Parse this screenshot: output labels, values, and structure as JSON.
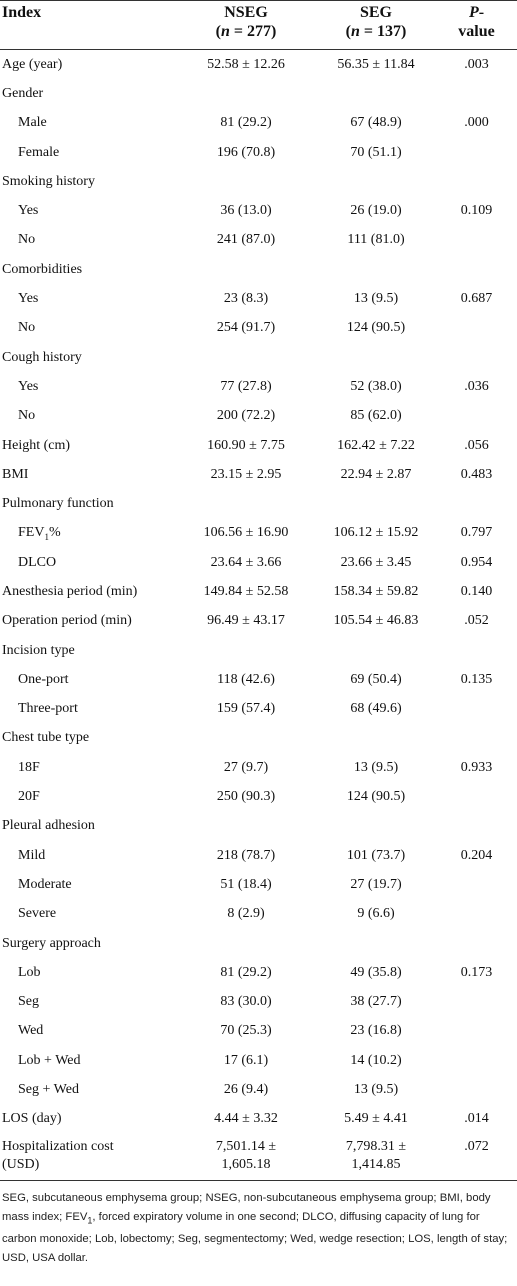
{
  "table": {
    "header": {
      "index": "Index",
      "nseg": {
        "name": "NSEG",
        "open": "(",
        "var": "n",
        "rest": " = 277)"
      },
      "seg": {
        "name": "SEG",
        "open": "(",
        "var": "n",
        "rest": " = 137)"
      },
      "p": {
        "var": "P",
        "rest": "-",
        "line2": "value"
      }
    },
    "rows": [
      {
        "label": "Age (year)",
        "nseg": "52.58 ± 12.26",
        "seg": "56.35 ± 11.84",
        "p": ".003"
      },
      {
        "label": "Gender",
        "items": [
          {
            "label": "Male",
            "nseg": "81 (29.2)",
            "seg": "67 (48.9)",
            "p": ".000"
          },
          {
            "label": "Female",
            "nseg": "196 (70.8)",
            "seg": "70 (51.1)"
          }
        ]
      },
      {
        "label": "Smoking history",
        "items": [
          {
            "label": "Yes",
            "nseg": "36 (13.0)",
            "seg": "26 (19.0)",
            "p": "0.109"
          },
          {
            "label": "No",
            "nseg": "241 (87.0)",
            "seg": "111 (81.0)"
          }
        ]
      },
      {
        "label": "Comorbidities",
        "items": [
          {
            "label": "Yes",
            "nseg": "23 (8.3)",
            "seg": "13 (9.5)",
            "p": "0.687"
          },
          {
            "label": "No",
            "nseg": "254 (91.7)",
            "seg": "124 (90.5)"
          }
        ]
      },
      {
        "label": "Cough history",
        "items": [
          {
            "label": "Yes",
            "nseg": "77 (27.8)",
            "seg": "52 (38.0)",
            "p": ".036"
          },
          {
            "label": "No",
            "nseg": "200 (72.2)",
            "seg": "85 (62.0)"
          }
        ]
      },
      {
        "label": "Height (cm)",
        "nseg": "160.90 ± 7.75",
        "seg": "162.42 ± 7.22",
        "p": ".056"
      },
      {
        "label": "BMI",
        "nseg": "23.15 ± 2.95",
        "seg": "22.94 ± 2.87",
        "p": "0.483"
      },
      {
        "label": "Pulmonary function",
        "items": [
          {
            "label": {
              "text": "FEV",
              "sub": "1",
              "post": "%"
            },
            "nseg": "106.56 ± 16.90",
            "seg": "106.12 ± 15.92",
            "p": "0.797"
          },
          {
            "label": "DLCO",
            "nseg": "23.64 ± 3.66",
            "seg": "23.66 ± 3.45",
            "p": "0.954"
          }
        ]
      },
      {
        "label": "Anesthesia period (min)",
        "nseg": "149.84 ± 52.58",
        "seg": "158.34 ± 59.82",
        "p": "0.140"
      },
      {
        "label": "Operation period (min)",
        "nseg": "96.49 ± 43.17",
        "seg": "105.54 ± 46.83",
        "p": ".052"
      },
      {
        "label": "Incision type",
        "items": [
          {
            "label": "One-port",
            "nseg": "118 (42.6)",
            "seg": "69 (50.4)",
            "p": "0.135"
          },
          {
            "label": "Three-port",
            "nseg": "159 (57.4)",
            "seg": "68 (49.6)"
          }
        ]
      },
      {
        "label": "Chest tube type",
        "items": [
          {
            "label": "18F",
            "nseg": "27 (9.7)",
            "seg": "13 (9.5)",
            "p": "0.933"
          },
          {
            "label": "20F",
            "nseg": "250 (90.3)",
            "seg": "124 (90.5)"
          }
        ]
      },
      {
        "label": "Pleural adhesion",
        "items": [
          {
            "label": "Mild",
            "nseg": "218 (78.7)",
            "seg": "101 (73.7)",
            "p": "0.204"
          },
          {
            "label": "Moderate",
            "nseg": "51 (18.4)",
            "seg": "27 (19.7)"
          },
          {
            "label": "Severe",
            "nseg": "8 (2.9)",
            "seg": "9 (6.6)"
          }
        ]
      },
      {
        "label": "Surgery approach",
        "items": [
          {
            "label": "Lob",
            "nseg": "81 (29.2)",
            "seg": "49 (35.8)",
            "p": "0.173"
          },
          {
            "label": "Seg",
            "nseg": "83 (30.0)",
            "seg": "38 (27.7)"
          },
          {
            "label": "Wed",
            "nseg": "70 (25.3)",
            "seg": "23 (16.8)"
          },
          {
            "label": "Lob + Wed",
            "nseg": "17 (6.1)",
            "seg": "14 (10.2)"
          },
          {
            "label": "Seg + Wed",
            "nseg": "26 (9.4)",
            "seg": "13 (9.5)"
          }
        ]
      },
      {
        "label": "LOS (day)",
        "nseg": "4.44 ± 3.32",
        "seg": "5.49 ± 4.41",
        "p": ".014"
      },
      {
        "label": "Hospitalization cost (USD)",
        "nseg": "7,501.14 ± 1,605.18",
        "seg": "7,798.31 ± 1,414.85",
        "p": ".072"
      }
    ],
    "footnote": {
      "before": "SEG, subcutaneous emphysema group; NSEG, non-subcutaneous emphysema group; BMI, body mass index; FEV",
      "sub": "1",
      "after": ", forced expiratory volume in one second; DLCO, diffusing capacity of lung for carbon monoxide; Lob, lobectomy; Seg, segmentectomy; Wed, wedge resection; LOS, length of stay; USD, USA dollar."
    }
  }
}
